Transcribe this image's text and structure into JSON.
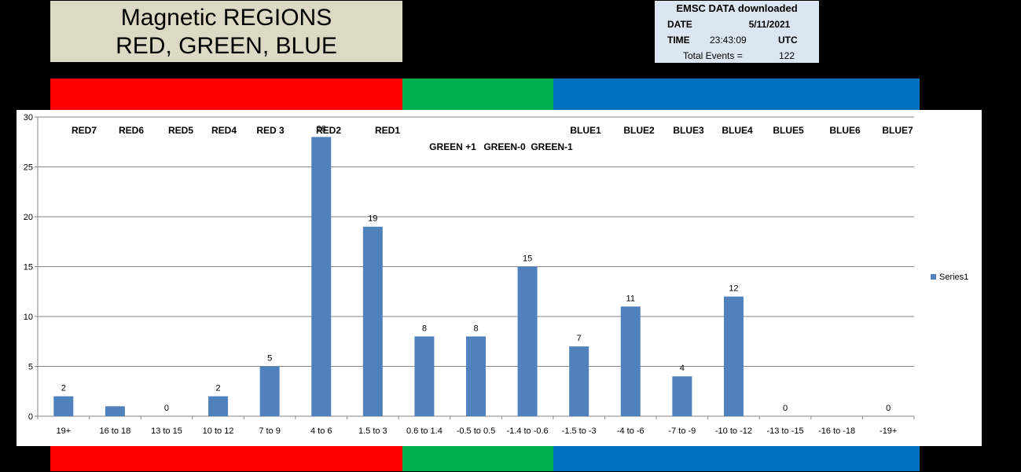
{
  "title": {
    "line1": "Magnetic REGIONS",
    "line2": "RED, GREEN, BLUE"
  },
  "info": {
    "header": "EMSC DATA downloaded",
    "date_label": "DATE",
    "date_value": "5/11/2021",
    "time_label": "TIME",
    "time_value": "23:43:09",
    "time_zone": "UTC",
    "total_label": "Total Events =",
    "total_value": "122"
  },
  "colors": {
    "red": "#ff0000",
    "green": "#00b050",
    "blue": "#0070c0",
    "bar": "#4f81bd",
    "title_bg": "#ddd9c4",
    "info_bg": "#dce6f1"
  },
  "chart_data": {
    "type": "bar",
    "categories": [
      "19+",
      "16 to 18",
      "13 to 15",
      "10 to 12",
      "7 to 9",
      "4 to 6",
      "1.5 to 3",
      "0.6 to 1.4",
      "-0.5 to 0.5",
      "-1.4 to -0.6",
      "-1.5 to -3",
      "-4 to -6",
      "-7 to -9",
      "-10 to -12",
      "-13 to -15",
      "-16 to -18",
      "-19+"
    ],
    "series": [
      {
        "name": "Series1",
        "values": [
          2,
          1,
          0,
          2,
          5,
          28,
          19,
          8,
          8,
          15,
          7,
          11,
          4,
          12,
          0,
          0,
          0
        ]
      }
    ],
    "data_labels": [
      "2",
      "",
      "0",
      "2",
      "5",
      "28",
      "19",
      "8",
      "8",
      "15",
      "7",
      "11",
      "4",
      "12",
      "0",
      "",
      "0"
    ],
    "region_labels": [
      "RED7",
      "RED6",
      "RED5",
      "RED4",
      "RED 3",
      "RED2",
      "RED1",
      "GREEN +1",
      "GREEN-0",
      "GREEN-1",
      "BLUE1",
      "BLUE2",
      "BLUE3",
      "BLUE4",
      "BLUE5",
      "BLUE6",
      "BLUE7"
    ],
    "ylim": [
      0,
      30
    ],
    "yticks": [
      0,
      5,
      10,
      15,
      20,
      25,
      30
    ],
    "grid": true,
    "legend_position": "right"
  }
}
